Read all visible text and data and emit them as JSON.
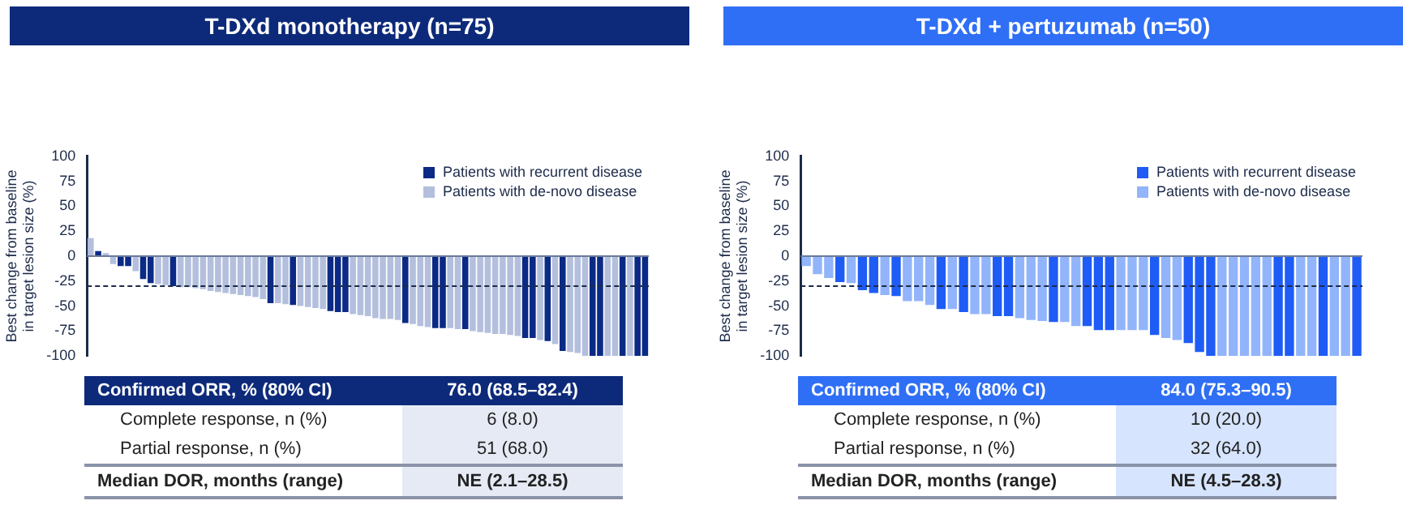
{
  "chart_data": [
    {
      "type": "bar",
      "title": "T-DXd monotherapy (n=75)",
      "ylabel": "Best change from baseline in target lesion size (%)",
      "categories": [
        null,
        null,
        null,
        null,
        null,
        null,
        null,
        null,
        null,
        null,
        null,
        null,
        null,
        null,
        null,
        null,
        null,
        null,
        null,
        null,
        null,
        null,
        null,
        null,
        null,
        null,
        null,
        null,
        null,
        null,
        null,
        null,
        null,
        null,
        null,
        null,
        null,
        null,
        null,
        null,
        null,
        null,
        null,
        null,
        null,
        null,
        null,
        null,
        null,
        null,
        null,
        null,
        null,
        null,
        null,
        null,
        null,
        null,
        null,
        null,
        null,
        null,
        null,
        null,
        null,
        null,
        null,
        null,
        null,
        null,
        null,
        null,
        null,
        null,
        null
      ],
      "series": [
        {
          "name": "Patients with recurrent disease",
          "color": "#0b2a86",
          "values": [
            null,
            5,
            null,
            null,
            -10,
            -10,
            null,
            -23,
            -27,
            null,
            null,
            -30,
            null,
            null,
            null,
            null,
            null,
            null,
            null,
            null,
            null,
            null,
            null,
            null,
            -47,
            null,
            null,
            -49,
            null,
            null,
            null,
            null,
            -55,
            -56,
            -56,
            null,
            null,
            null,
            null,
            null,
            null,
            null,
            -67,
            null,
            null,
            null,
            -72,
            -72,
            null,
            null,
            -73,
            null,
            null,
            null,
            null,
            null,
            null,
            null,
            -82,
            -82,
            null,
            -85,
            null,
            -95,
            null,
            null,
            null,
            -100,
            -100,
            null,
            null,
            -100,
            null,
            -100,
            -100
          ]
        },
        {
          "name": "Patients with de-novo disease",
          "color": "#b3bfdd",
          "values": [
            18,
            null,
            3,
            -8,
            null,
            null,
            -15,
            null,
            null,
            -28,
            -29,
            null,
            -31,
            -31,
            -32,
            -33,
            -35,
            -36,
            -37,
            -38,
            -39,
            -40,
            -41,
            -43,
            null,
            -47,
            -48,
            null,
            -50,
            -51,
            -52,
            -53,
            null,
            null,
            null,
            -58,
            -59,
            -60,
            -62,
            -63,
            -63,
            -64,
            null,
            -68,
            -70,
            -71,
            null,
            null,
            -72,
            -73,
            null,
            -75,
            -76,
            -77,
            -78,
            -78,
            -79,
            -80,
            null,
            null,
            -84,
            null,
            -88,
            null,
            -96,
            -97,
            -100,
            null,
            null,
            -100,
            -100,
            null,
            -100,
            null,
            null
          ]
        }
      ],
      "ylim": [
        -100,
        100
      ],
      "yticks": [
        -100,
        -75,
        -50,
        -25,
        0,
        25,
        50,
        75,
        100
      ],
      "tick_labels": "y",
      "legend": "top right",
      "ref_lines": [
        {
          "axis": "y",
          "value": 0,
          "line_style": "solid",
          "color": "#6b7a99"
        },
        {
          "axis": "y",
          "value": -30,
          "line_style": "dashed",
          "color": "#1c2b4a"
        }
      ],
      "annotations": [
        "Confirmed ORR, % (80% CI)",
        "76.0 (68.5–82.4)",
        "Complete response, n (%)",
        "6 (8.0)",
        "Partial response, n (%)",
        "51 (68.0)",
        "Median DOR, months (range)",
        "NE (2.1–28.5)"
      ]
    },
    {
      "type": "bar",
      "title": "T-DXd + pertuzumab (n=50)",
      "ylabel": "Best change from baseline in target lesion size (%)",
      "categories": [
        null,
        null,
        null,
        null,
        null,
        null,
        null,
        null,
        null,
        null,
        null,
        null,
        null,
        null,
        null,
        null,
        null,
        null,
        null,
        null,
        null,
        null,
        null,
        null,
        null,
        null,
        null,
        null,
        null,
        null,
        null,
        null,
        null,
        null,
        null,
        null,
        null,
        null,
        null,
        null,
        null,
        null,
        null,
        null,
        null,
        null,
        null,
        null,
        null,
        null
      ],
      "series": [
        {
          "name": "Patients with recurrent disease",
          "color": "#1f5cf5",
          "values": [
            null,
            null,
            null,
            -26,
            null,
            -34,
            -37,
            null,
            -40,
            null,
            null,
            null,
            -53,
            null,
            -56,
            null,
            null,
            -60,
            -60,
            null,
            null,
            null,
            -66,
            null,
            null,
            -70,
            -74,
            -74,
            null,
            null,
            null,
            -79,
            null,
            null,
            -87,
            -96,
            -100,
            null,
            null,
            null,
            null,
            null,
            -100,
            -100,
            null,
            null,
            -100,
            null,
            null,
            -100
          ]
        },
        {
          "name": "Patients with de-novo disease",
          "color": "#92b4fb",
          "values": [
            -10,
            -18,
            -22,
            null,
            -27,
            null,
            null,
            -39,
            null,
            -45,
            -45,
            -49,
            null,
            -53,
            null,
            -58,
            -58,
            null,
            null,
            -62,
            -64,
            -65,
            null,
            -66,
            -70,
            null,
            null,
            null,
            -74,
            -74,
            -74,
            null,
            -82,
            -84,
            null,
            null,
            null,
            -100,
            -100,
            -100,
            -100,
            -100,
            null,
            null,
            -100,
            -100,
            null,
            -100,
            -100,
            null
          ]
        }
      ],
      "ylim": [
        -100,
        100
      ],
      "yticks": [
        -100,
        -75,
        -50,
        -25,
        0,
        25,
        50,
        75,
        100
      ],
      "tick_labels": "y",
      "legend": "top right",
      "ref_lines": [
        {
          "axis": "y",
          "value": 0,
          "line_style": "solid",
          "color": "#6b7a99"
        },
        {
          "axis": "y",
          "value": -30,
          "line_style": "dashed",
          "color": "#1c2b4a"
        }
      ],
      "annotations": [
        "Confirmed ORR, % (80% CI)",
        "84.0 (75.3–90.5)",
        "Complete response, n (%)",
        "10 (20.0)",
        "Partial response, n (%)",
        "32 (64.0)",
        "Median DOR, months (range)",
        "NE (4.5–28.3)"
      ]
    }
  ]
}
